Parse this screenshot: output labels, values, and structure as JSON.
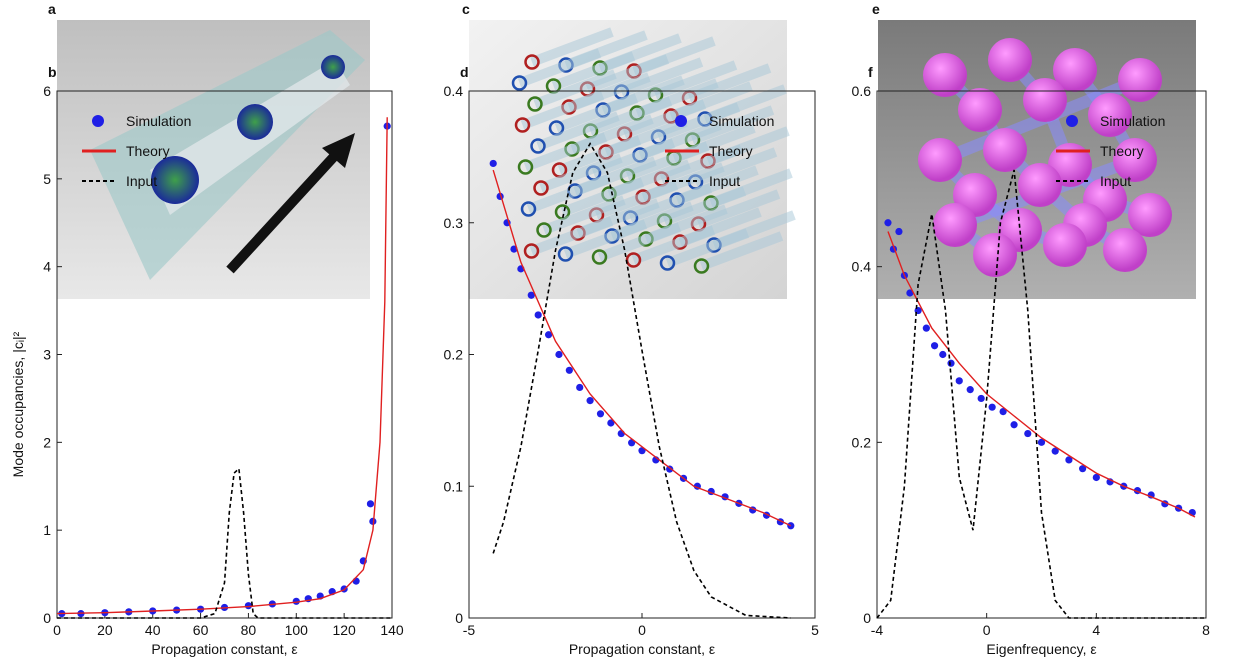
{
  "panels": [
    "a",
    "c",
    "e"
  ],
  "chart_data": [
    {
      "type": "line",
      "label": "b",
      "xlabel": "Propagation constant, ε",
      "ylabel": "Mode occupancies, |cᵢ|²",
      "xlim": [
        0,
        140
      ],
      "xticks": [
        0,
        20,
        40,
        60,
        80,
        100,
        120,
        140
      ],
      "ylim": [
        0,
        6
      ],
      "yticks": [
        0,
        1,
        2,
        3,
        4,
        5,
        6
      ],
      "legend": "upper-left",
      "series": [
        {
          "name": "Simulation",
          "color": "#1f1fe6",
          "marker": "dot",
          "x": [
            2,
            10,
            20,
            30,
            40,
            50,
            60,
            70,
            80,
            90,
            100,
            105,
            110,
            115,
            120,
            125,
            128,
            131,
            132,
            138
          ],
          "values": [
            0.05,
            0.05,
            0.06,
            0.07,
            0.08,
            0.09,
            0.1,
            0.12,
            0.14,
            0.16,
            0.19,
            0.22,
            0.25,
            0.3,
            0.33,
            0.42,
            0.65,
            1.3,
            1.1,
            5.6
          ]
        },
        {
          "name": "Theory",
          "color": "#e02020",
          "x": [
            0,
            20,
            40,
            60,
            80,
            100,
            110,
            120,
            128,
            132,
            135,
            137,
            138
          ],
          "values": [
            0.05,
            0.06,
            0.08,
            0.1,
            0.13,
            0.18,
            0.22,
            0.32,
            0.55,
            1.0,
            2.0,
            3.6,
            5.7
          ]
        },
        {
          "name": "Input",
          "color": "#000000",
          "dash": true,
          "x": [
            0,
            60,
            66,
            70,
            72,
            74,
            76,
            78,
            80,
            82,
            84,
            140
          ],
          "values": [
            0,
            0,
            0.05,
            0.4,
            1.2,
            1.65,
            1.7,
            1.2,
            0.5,
            0.05,
            0,
            0
          ]
        }
      ]
    },
    {
      "type": "line",
      "label": "d",
      "xlabel": "Propagation constant, ε",
      "xlim": [
        -5,
        5
      ],
      "xticks": [
        -5,
        0,
        5
      ],
      "ylim": [
        0,
        0.4
      ],
      "yticks": [
        0,
        0.1,
        0.2,
        0.3,
        0.4
      ],
      "legend": "upper-right",
      "series": [
        {
          "name": "Simulation",
          "color": "#1f1fe6",
          "marker": "dot",
          "x": [
            -4.3,
            -4.1,
            -3.9,
            -3.7,
            -3.5,
            -3.2,
            -3.0,
            -2.7,
            -2.4,
            -2.1,
            -1.8,
            -1.5,
            -1.2,
            -0.9,
            -0.6,
            -0.3,
            0.0,
            0.4,
            0.8,
            1.2,
            1.6,
            2.0,
            2.4,
            2.8,
            3.2,
            3.6,
            4.0,
            4.3
          ],
          "values": [
            0.345,
            0.32,
            0.3,
            0.28,
            0.265,
            0.245,
            0.23,
            0.215,
            0.2,
            0.188,
            0.175,
            0.165,
            0.155,
            0.148,
            0.14,
            0.133,
            0.127,
            0.12,
            0.113,
            0.106,
            0.1,
            0.096,
            0.092,
            0.087,
            0.082,
            0.078,
            0.073,
            0.07
          ]
        },
        {
          "name": "Theory",
          "color": "#e02020",
          "x": [
            -4.3,
            -3.5,
            -2.5,
            -1.5,
            -0.5,
            0.5,
            1.5,
            2.5,
            3.5,
            4.3
          ],
          "values": [
            0.34,
            0.27,
            0.21,
            0.17,
            0.14,
            0.12,
            0.1,
            0.09,
            0.08,
            0.07
          ]
        },
        {
          "name": "Input",
          "color": "#000000",
          "dash": true,
          "x": [
            -4.3,
            -4.0,
            -3.5,
            -3.0,
            -2.5,
            -2.0,
            -1.5,
            -1.0,
            -0.5,
            0.0,
            0.5,
            1.0,
            1.5,
            2.0,
            3.0,
            4.3
          ],
          "values": [
            0.049,
            0.073,
            0.13,
            0.203,
            0.279,
            0.338,
            0.36,
            0.338,
            0.279,
            0.203,
            0.13,
            0.073,
            0.036,
            0.016,
            0.002,
            0
          ]
        }
      ]
    },
    {
      "type": "line",
      "label": "f",
      "xlabel": "Eigenfrequency, ε",
      "xlim": [
        -4,
        8
      ],
      "xticks": [
        -4,
        0,
        4,
        8
      ],
      "ylim": [
        0,
        0.6
      ],
      "yticks": [
        0,
        0.2,
        0.4,
        0.6
      ],
      "legend": "upper-right",
      "series": [
        {
          "name": "Simulation",
          "color": "#1f1fe6",
          "marker": "dot",
          "x": [
            -3.6,
            -3.4,
            -3.2,
            -3.0,
            -2.8,
            -2.5,
            -2.2,
            -1.9,
            -1.6,
            -1.3,
            -1.0,
            -0.6,
            -0.2,
            0.2,
            0.6,
            1.0,
            1.5,
            2.0,
            2.5,
            3.0,
            3.5,
            4.0,
            4.5,
            5.0,
            5.5,
            6.0,
            6.5,
            7.0,
            7.5
          ],
          "values": [
            0.45,
            0.42,
            0.44,
            0.39,
            0.37,
            0.35,
            0.33,
            0.31,
            0.3,
            0.29,
            0.27,
            0.26,
            0.25,
            0.24,
            0.235,
            0.22,
            0.21,
            0.2,
            0.19,
            0.18,
            0.17,
            0.16,
            0.155,
            0.15,
            0.145,
            0.14,
            0.13,
            0.125,
            0.12
          ]
        },
        {
          "name": "Theory",
          "color": "#e02020",
          "x": [
            -3.6,
            -3.0,
            -2.0,
            -1.0,
            0.0,
            1.0,
            2.0,
            3.0,
            4.0,
            5.0,
            6.0,
            7.0,
            7.6
          ],
          "values": [
            0.44,
            0.39,
            0.33,
            0.29,
            0.255,
            0.23,
            0.205,
            0.185,
            0.165,
            0.15,
            0.138,
            0.125,
            0.115
          ]
        },
        {
          "name": "Input",
          "color": "#000000",
          "dash": true,
          "x": [
            -4.0,
            -3.5,
            -3.0,
            -2.5,
            -2.0,
            -1.5,
            -1.0,
            -0.5,
            0.0,
            0.5,
            1.0,
            1.5,
            2.0,
            2.5,
            3.0,
            8.0
          ],
          "values": [
            0,
            0.02,
            0.15,
            0.38,
            0.46,
            0.35,
            0.16,
            0.1,
            0.25,
            0.45,
            0.51,
            0.35,
            0.12,
            0.02,
            0,
            0
          ]
        }
      ]
    }
  ]
}
